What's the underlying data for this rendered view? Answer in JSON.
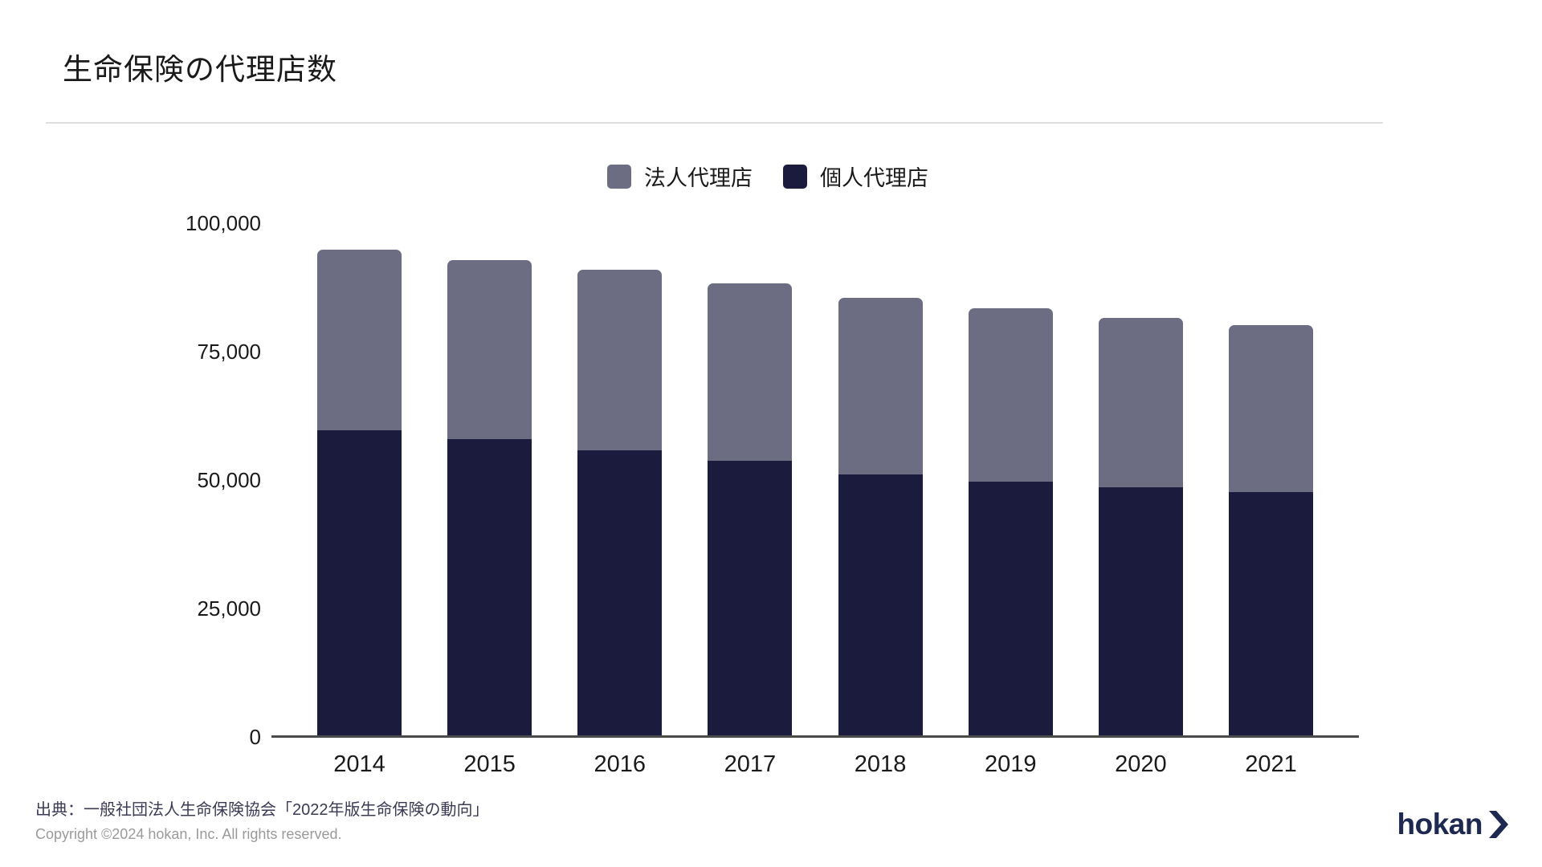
{
  "page": {
    "title": "生命保険の代理店数",
    "source": "出典：一般社団法人生命保険協会「2022年版生命保険の動向」",
    "copyright": "Copyright ©2024 hokan, Inc. All rights reserved.",
    "logo_text": "hokan"
  },
  "icons": {
    "logo_chevron": "chevron-right-icon"
  },
  "colors": {
    "corporate_series": "#6C6C83",
    "individual_series": "#1B1B3D",
    "axis_line": "#4A4A4A",
    "divider": "#DEDEDE",
    "title_text": "#1A1A1A",
    "source_text": "#3B3B55",
    "copyright_text": "#9A9A9A",
    "logo": "#1D2950",
    "background": "#FFFFFF"
  },
  "chart_data": {
    "type": "bar",
    "stacked": true,
    "title": "生命保険の代理店数",
    "categories": [
      "2014",
      "2015",
      "2016",
      "2017",
      "2018",
      "2019",
      "2020",
      "2021"
    ],
    "series": [
      {
        "name": "法人代理店",
        "color": "#6C6C83",
        "stack_position": "top",
        "values": [
          35200,
          34900,
          35200,
          34600,
          34400,
          33700,
          32900,
          32500
        ]
      },
      {
        "name": "個人代理店",
        "color": "#1B1B3D",
        "stack_position": "bottom",
        "values": [
          59700,
          57900,
          55800,
          53700,
          51100,
          49700,
          48600,
          47600
        ]
      }
    ],
    "totals": [
      94900,
      92800,
      91000,
      88300,
      85500,
      83400,
      81500,
      80100
    ],
    "xlabel": "",
    "ylabel": "",
    "ylim": [
      0,
      100000
    ],
    "yticks": [
      0,
      25000,
      50000,
      75000,
      100000
    ],
    "ytick_labels": [
      "0",
      "25,000",
      "50,000",
      "75,000",
      "100,000"
    ],
    "grid": false,
    "legend_position": "top-center"
  }
}
